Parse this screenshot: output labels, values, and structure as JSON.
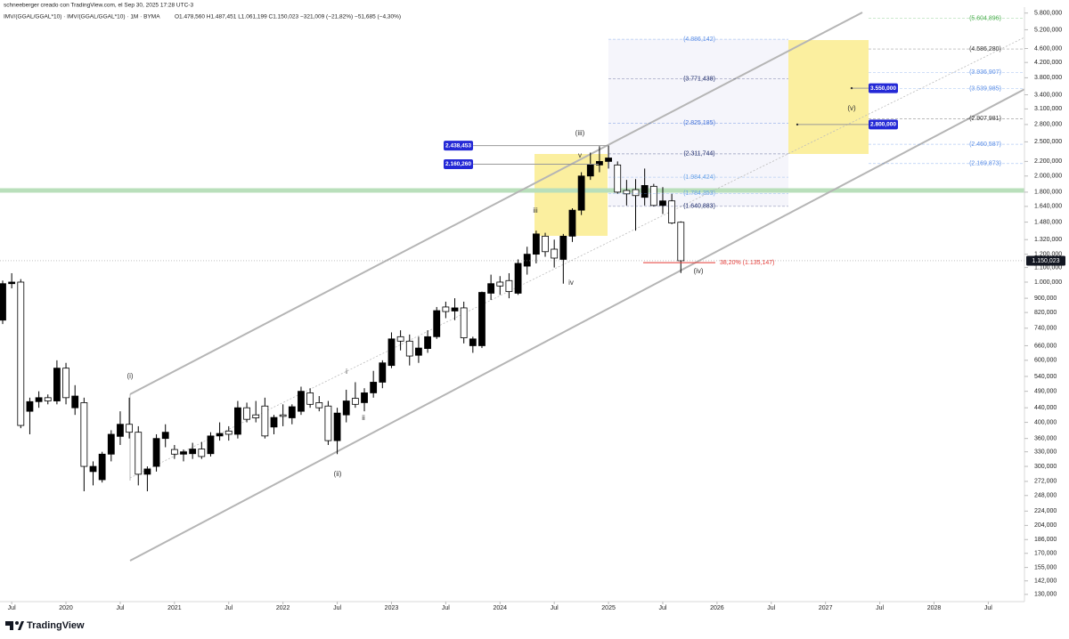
{
  "header": {
    "byline": "schneeberger creado con TradingView.com, el Sep 30, 2025 17:28 UTC-3",
    "symbol": "IMV/(GGAL/GGAL*10) · IMV/(GGAL/GGAL*10) · 1M · BYMA",
    "ohlc": "O1.478,560  H1.487,451  L1.061,199  C1.150,023  −321,009 (−21,82%)  −51,685 (−4,30%)"
  },
  "chart_data": {
    "type": "candlestick",
    "log": true,
    "grid": false,
    "up_color": "#000000",
    "down_color": "#ffffff",
    "x": [
      "2019-06",
      "2019-07",
      "2019-08",
      "2019-09",
      "2019-10",
      "2019-11",
      "2019-12",
      "2020-01",
      "2020-02",
      "2020-03",
      "2020-04",
      "2020-05",
      "2020-06",
      "2020-07",
      "2020-08",
      "2020-09",
      "2020-10",
      "2020-11",
      "2020-12",
      "2021-01",
      "2021-02",
      "2021-03",
      "2021-04",
      "2021-05",
      "2021-06",
      "2021-07",
      "2021-08",
      "2021-09",
      "2021-10",
      "2021-11",
      "2021-12",
      "2022-01",
      "2022-02",
      "2022-03",
      "2022-04",
      "2022-05",
      "2022-06",
      "2022-07",
      "2022-08",
      "2022-09",
      "2022-10",
      "2022-11",
      "2022-12",
      "2023-01",
      "2023-02",
      "2023-03",
      "2023-04",
      "2023-05",
      "2023-06",
      "2023-07",
      "2023-08",
      "2023-09",
      "2023-10",
      "2023-11",
      "2023-12",
      "2024-01",
      "2024-02",
      "2024-03",
      "2024-04",
      "2024-05",
      "2024-06",
      "2024-07",
      "2024-08",
      "2024-09",
      "2024-10",
      "2024-11",
      "2024-12",
      "2025-01",
      "2025-02",
      "2025-03",
      "2025-04",
      "2025-05",
      "2025-06",
      "2025-07",
      "2025-08",
      "2025-09"
    ],
    "open": [
      780000,
      990000,
      1000000,
      430000,
      458000,
      470000,
      460000,
      570000,
      440000,
      455000,
      290000,
      275000,
      325000,
      365000,
      395000,
      375000,
      285000,
      300000,
      360000,
      335000,
      325000,
      326000,
      336000,
      326000,
      366000,
      378000,
      370000,
      440000,
      420000,
      445000,
      388000,
      420000,
      412000,
      430000,
      485000,
      455000,
      445000,
      355000,
      420000,
      468000,
      455000,
      485000,
      520000,
      580000,
      700000,
      680000,
      620000,
      648000,
      700000,
      850000,
      828000,
      845000,
      660000,
      660000,
      930000,
      1000000,
      1010000,
      930000,
      1110000,
      1200000,
      1350000,
      1240000,
      1160000,
      1350000,
      1600000,
      2000000,
      2150000,
      2200000,
      2150000,
      1820000,
      1830000,
      1740000,
      1870000,
      1650000,
      1700000,
      1478560
    ],
    "high": [
      1010000,
      1060000,
      1020000,
      470000,
      490000,
      480000,
      600000,
      590000,
      510000,
      470000,
      310000,
      330000,
      380000,
      430000,
      470000,
      390000,
      300000,
      370000,
      395000,
      345000,
      335000,
      350000,
      352000,
      375000,
      400000,
      390000,
      460000,
      455000,
      460000,
      470000,
      420000,
      450000,
      450000,
      505000,
      500000,
      475000,
      460000,
      440000,
      495000,
      520000,
      500000,
      560000,
      600000,
      720000,
      730000,
      710000,
      700000,
      730000,
      850000,
      880000,
      900000,
      880000,
      700000,
      940000,
      1050000,
      1040000,
      1060000,
      1160000,
      1260000,
      1400000,
      1380000,
      1320000,
      1370000,
      1620000,
      2050000,
      2330000,
      2430000,
      2440000,
      2200000,
      1950000,
      1960000,
      2100000,
      1900000,
      1860000,
      1780000,
      1487451
    ],
    "low": [
      760000,
      960000,
      385000,
      370000,
      440000,
      450000,
      450000,
      450000,
      420000,
      255000,
      265000,
      270000,
      310000,
      345000,
      360000,
      265000,
      255000,
      290000,
      340000,
      315000,
      310000,
      315000,
      315000,
      320000,
      355000,
      355000,
      360000,
      400000,
      400000,
      360000,
      370000,
      390000,
      395000,
      420000,
      440000,
      430000,
      345000,
      325000,
      400000,
      440000,
      430000,
      470000,
      500000,
      570000,
      640000,
      580000,
      590000,
      630000,
      690000,
      790000,
      780000,
      670000,
      630000,
      650000,
      890000,
      920000,
      900000,
      920000,
      1050000,
      1130000,
      1180000,
      1100000,
      990000,
      1300000,
      1550000,
      1950000,
      2050000,
      2100000,
      1780000,
      1650000,
      1400000,
      1650000,
      1640000,
      1560000,
      1460000,
      1061199
    ],
    "close": [
      990000,
      1000000,
      392000,
      458000,
      470000,
      460000,
      570000,
      470000,
      475000,
      300000,
      300000,
      325000,
      370000,
      395000,
      375000,
      285000,
      295000,
      360000,
      375000,
      325000,
      330000,
      336000,
      320000,
      366000,
      372000,
      370000,
      440000,
      408000,
      412000,
      366000,
      413000,
      416000,
      443000,
      490000,
      450000,
      440000,
      355000,
      425000,
      460000,
      450000,
      485000,
      520000,
      590000,
      690000,
      680000,
      617000,
      650000,
      700000,
      830000,
      825000,
      845000,
      695000,
      690000,
      935000,
      990000,
      975000,
      940000,
      1130000,
      1200000,
      1370000,
      1220000,
      1170000,
      1350000,
      1600000,
      2000000,
      2150000,
      2200000,
      2250000,
      1800000,
      1780000,
      1760000,
      1880000,
      1650000,
      1700000,
      1471032,
      1150023
    ],
    "xlim": [
      "2019-06",
      "2028-11"
    ],
    "xticks": [
      {
        "value": "2019-07",
        "label": "Jul"
      },
      {
        "value": "2020-01",
        "label": "2020"
      },
      {
        "value": "2020-07",
        "label": "Jul"
      },
      {
        "value": "2021-01",
        "label": "2021"
      },
      {
        "value": "2021-07",
        "label": "Jul"
      },
      {
        "value": "2022-01",
        "label": "2022"
      },
      {
        "value": "2022-07",
        "label": "Jul"
      },
      {
        "value": "2023-01",
        "label": "2023"
      },
      {
        "value": "2023-07",
        "label": "Jul"
      },
      {
        "value": "2024-01",
        "label": "2024"
      },
      {
        "value": "2024-07",
        "label": "Jul"
      },
      {
        "value": "2025-01",
        "label": "2025"
      },
      {
        "value": "2025-07",
        "label": "Jul"
      },
      {
        "value": "2026-01",
        "label": "2026"
      },
      {
        "value": "2026-07",
        "label": "Jul"
      },
      {
        "value": "2027-01",
        "label": "2027"
      },
      {
        "value": "2027-07",
        "label": "Jul"
      },
      {
        "value": "2028-01",
        "label": "2028"
      },
      {
        "value": "2028-07",
        "label": "Jul"
      }
    ],
    "ylim": [
      124000,
      6029000
    ],
    "yticks": [
      {
        "value": 5800000,
        "label": "5.800,000"
      },
      {
        "value": 5200000,
        "label": "5.200,000"
      },
      {
        "value": 4600000,
        "label": "4.600,000"
      },
      {
        "value": 4200000,
        "label": "4.200,000"
      },
      {
        "value": 3800000,
        "label": "3.800,000"
      },
      {
        "value": 3400000,
        "label": "3.400,000"
      },
      {
        "value": 3100000,
        "label": "3.100,000"
      },
      {
        "value": 2800000,
        "label": "2.800,000"
      },
      {
        "value": 2500000,
        "label": "2.500,000"
      },
      {
        "value": 2200000,
        "label": "2.200,000"
      },
      {
        "value": 2000000,
        "label": "2.000,000"
      },
      {
        "value": 1800000,
        "label": "1.800,000"
      },
      {
        "value": 1640000,
        "label": "1.640,000"
      },
      {
        "value": 1480000,
        "label": "1.480,000"
      },
      {
        "value": 1320000,
        "label": "1.320,000"
      },
      {
        "value": 1200000,
        "label": "1.200,000"
      },
      {
        "value": 1100000,
        "label": "1.100,000"
      },
      {
        "value": 1000000,
        "label": "1.000,000"
      },
      {
        "value": 900000,
        "label": "900,000"
      },
      {
        "value": 820000,
        "label": "820,000"
      },
      {
        "value": 740000,
        "label": "740,000"
      },
      {
        "value": 660000,
        "label": "660,000"
      },
      {
        "value": 600000,
        "label": "600,000"
      },
      {
        "value": 540000,
        "label": "540,000"
      },
      {
        "value": 490000,
        "label": "490,000"
      },
      {
        "value": 440000,
        "label": "440,000"
      },
      {
        "value": 400000,
        "label": "400,000"
      },
      {
        "value": 360000,
        "label": "360,000"
      },
      {
        "value": 330000,
        "label": "330,000"
      },
      {
        "value": 300000,
        "label": "300,000"
      },
      {
        "value": 272000,
        "label": "272,000"
      },
      {
        "value": 248000,
        "label": "248,000"
      },
      {
        "value": 224000,
        "label": "224,000"
      },
      {
        "value": 204000,
        "label": "204,000"
      },
      {
        "value": 186000,
        "label": "186,000"
      },
      {
        "value": 170000,
        "label": "170,000"
      },
      {
        "value": 155000,
        "label": "155,000"
      },
      {
        "value": 142000,
        "label": "142,000"
      },
      {
        "value": 130000,
        "label": "130,000"
      }
    ],
    "last_price": {
      "value": 1150023,
      "label": "1.150,023"
    },
    "fib_left": [
      {
        "value": 4886142,
        "label": "(4.886,142)",
        "color": "#5b8ee6"
      },
      {
        "value": 3771438,
        "label": "(3.771,438)",
        "color": "#1c2a6b"
      },
      {
        "value": 2825185,
        "label": "(2.825,185)",
        "color": "#3f6fd8"
      },
      {
        "value": 2311744,
        "label": "(2.311,744)",
        "color": "#1c2a6b"
      },
      {
        "value": 1984424,
        "label": "(1.984,424)",
        "color": "#6aa3e8"
      },
      {
        "value": 1784353,
        "label": "(1.784,353)",
        "color": "#6aa3e8"
      },
      {
        "value": 1640883,
        "label": "(1.640,883)",
        "color": "#1c2a6b"
      }
    ],
    "fib_right": [
      {
        "value": 5604896,
        "label": "(5.604,896)",
        "color": "#4caf50"
      },
      {
        "value": 4586280,
        "label": "(4.586,280)",
        "color": "#333333"
      },
      {
        "value": 3936907,
        "label": "(3.936,907)",
        "color": "#5b8ee6"
      },
      {
        "value": 3539985,
        "label": "(3.539,985)",
        "color": "#5b8ee6"
      },
      {
        "value": 2907981,
        "label": "(2.907,981)",
        "color": "#333333"
      },
      {
        "value": 2460587,
        "label": "(2.460,587)",
        "color": "#5b8ee6"
      },
      {
        "value": 2169873,
        "label": "(2.169,873)",
        "color": "#5b8ee6"
      }
    ],
    "retracement": {
      "value": 1135147,
      "label": "38,20% (1.135,147)",
      "color": "#e53935"
    },
    "price_tags": [
      {
        "value": 2438453,
        "label": "2.438,453"
      },
      {
        "value": 2160260,
        "label": "2.160,260"
      },
      {
        "value": 3550000,
        "label": "3.550,000"
      },
      {
        "value": 2800000,
        "label": "2.800,000"
      }
    ],
    "tag_color": "#2429d6",
    "band": {
      "value": 1820000,
      "color": "#b9dfbb"
    },
    "wave_labels": [
      "(i)",
      "(ii)",
      "(iii)",
      "(iv)",
      "(v)",
      "i",
      "ii",
      "iii",
      "iv",
      "v"
    ]
  },
  "footer": {
    "brand": "TradingView"
  }
}
